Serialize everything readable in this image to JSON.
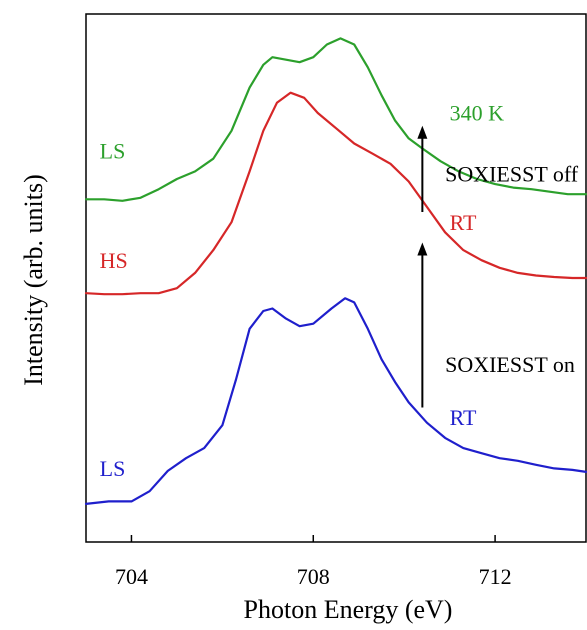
{
  "chart_data": {
    "type": "line",
    "xlabel": "Photon Energy (eV)",
    "ylabel": "Intensity (arb. units)",
    "xlim": [
      703,
      714
    ],
    "x_ticks": [
      "704",
      "708",
      "712"
    ],
    "x_tick_values": [
      704,
      708,
      712
    ],
    "y_ticks_shown": false,
    "grid": false,
    "series": [
      {
        "name": "340 K",
        "color": "#2ca02c",
        "points": [
          [
            703.0,
            6.75
          ],
          [
            703.4,
            6.75
          ],
          [
            703.8,
            6.72
          ],
          [
            704.2,
            6.78
          ],
          [
            704.6,
            6.95
          ],
          [
            705.0,
            7.15
          ],
          [
            705.4,
            7.3
          ],
          [
            705.8,
            7.55
          ],
          [
            706.2,
            8.1
          ],
          [
            706.6,
            8.95
          ],
          [
            706.9,
            9.4
          ],
          [
            707.1,
            9.55
          ],
          [
            707.4,
            9.5
          ],
          [
            707.7,
            9.45
          ],
          [
            708.0,
            9.55
          ],
          [
            708.3,
            9.8
          ],
          [
            708.6,
            9.92
          ],
          [
            708.9,
            9.8
          ],
          [
            709.2,
            9.35
          ],
          [
            709.5,
            8.8
          ],
          [
            709.8,
            8.3
          ],
          [
            710.1,
            7.95
          ],
          [
            710.4,
            7.75
          ],
          [
            710.8,
            7.5
          ],
          [
            711.2,
            7.3
          ],
          [
            711.6,
            7.15
          ],
          [
            712.0,
            7.05
          ],
          [
            712.4,
            6.98
          ],
          [
            712.8,
            6.95
          ],
          [
            713.2,
            6.9
          ],
          [
            713.6,
            6.85
          ],
          [
            714.0,
            6.85
          ]
        ]
      },
      {
        "name": "RT (SOXIESST off)",
        "color": "#d62728",
        "points": [
          [
            703.0,
            4.9
          ],
          [
            703.4,
            4.88
          ],
          [
            703.8,
            4.88
          ],
          [
            704.2,
            4.9
          ],
          [
            704.6,
            4.9
          ],
          [
            705.0,
            5.0
          ],
          [
            705.4,
            5.3
          ],
          [
            705.8,
            5.75
          ],
          [
            706.2,
            6.3
          ],
          [
            706.6,
            7.3
          ],
          [
            706.9,
            8.1
          ],
          [
            707.2,
            8.65
          ],
          [
            707.5,
            8.85
          ],
          [
            707.8,
            8.75
          ],
          [
            708.1,
            8.45
          ],
          [
            708.5,
            8.15
          ],
          [
            708.9,
            7.85
          ],
          [
            709.3,
            7.65
          ],
          [
            709.7,
            7.45
          ],
          [
            710.1,
            7.1
          ],
          [
            710.5,
            6.6
          ],
          [
            710.9,
            6.1
          ],
          [
            711.3,
            5.75
          ],
          [
            711.7,
            5.55
          ],
          [
            712.1,
            5.4
          ],
          [
            712.5,
            5.3
          ],
          [
            712.9,
            5.25
          ],
          [
            713.3,
            5.22
          ],
          [
            713.7,
            5.2
          ],
          [
            714.0,
            5.2
          ]
        ]
      },
      {
        "name": "RT (SOXIESST on)",
        "color": "#1f1fcc",
        "points": [
          [
            703.0,
            0.75
          ],
          [
            703.5,
            0.8
          ],
          [
            704.0,
            0.8
          ],
          [
            704.4,
            1.0
          ],
          [
            704.8,
            1.4
          ],
          [
            705.2,
            1.65
          ],
          [
            705.6,
            1.85
          ],
          [
            706.0,
            2.3
          ],
          [
            706.3,
            3.2
          ],
          [
            706.6,
            4.2
          ],
          [
            706.9,
            4.55
          ],
          [
            707.1,
            4.6
          ],
          [
            707.4,
            4.4
          ],
          [
            707.7,
            4.25
          ],
          [
            708.0,
            4.3
          ],
          [
            708.4,
            4.6
          ],
          [
            708.7,
            4.8
          ],
          [
            708.9,
            4.72
          ],
          [
            709.2,
            4.2
          ],
          [
            709.5,
            3.6
          ],
          [
            709.8,
            3.15
          ],
          [
            710.1,
            2.75
          ],
          [
            710.5,
            2.35
          ],
          [
            710.9,
            2.05
          ],
          [
            711.3,
            1.85
          ],
          [
            711.7,
            1.75
          ],
          [
            712.1,
            1.65
          ],
          [
            712.5,
            1.6
          ],
          [
            712.9,
            1.52
          ],
          [
            713.3,
            1.45
          ],
          [
            713.7,
            1.42
          ],
          [
            714.0,
            1.38
          ]
        ]
      }
    ],
    "annotations": [
      {
        "text": "LS",
        "color": "#2ca02c",
        "x": 703.3,
        "y": 7.55
      },
      {
        "text": "HS",
        "color": "#d62728",
        "x": 703.3,
        "y": 5.4
      },
      {
        "text": "LS",
        "color": "#1f1fcc",
        "x": 703.3,
        "y": 1.3
      },
      {
        "text": "340 K",
        "color": "#2ca02c",
        "x": 711.0,
        "y": 8.3
      },
      {
        "text": "SOXIESST off",
        "color": "#000000",
        "x": 710.9,
        "y": 7.1
      },
      {
        "text": "RT",
        "color": "#d62728",
        "x": 711.0,
        "y": 6.15
      },
      {
        "text": "SOXIESST on",
        "color": "#000000",
        "x": 710.9,
        "y": 3.35
      },
      {
        "text": "RT",
        "color": "#1f1fcc",
        "x": 711.0,
        "y": 2.3
      }
    ],
    "arrows": [
      {
        "x": 710.4,
        "y_from": 6.5,
        "y_to": 8.2
      },
      {
        "x": 710.4,
        "y_from": 2.65,
        "y_to": 5.9
      }
    ],
    "ylim": [
      0,
      10.4
    ]
  }
}
